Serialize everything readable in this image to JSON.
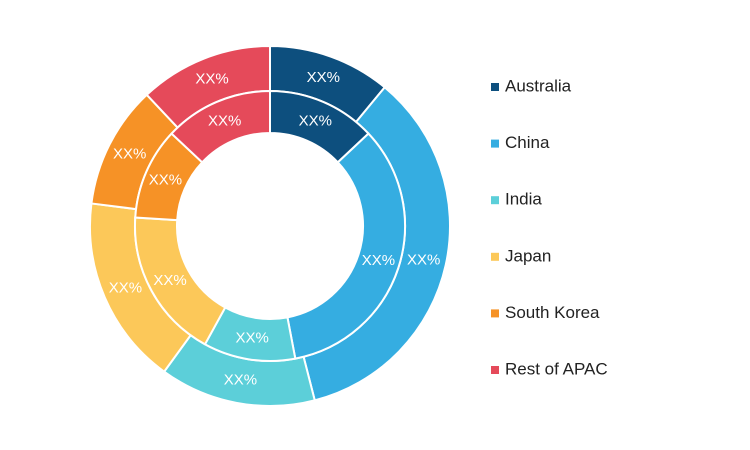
{
  "chart_data": {
    "type": "donut",
    "categories": [
      "Australia",
      "China",
      "India",
      "Japan",
      "South Korea",
      "Rest of APAC"
    ],
    "colors": [
      "#0d4f7e",
      "#35ade1",
      "#5ccfd9",
      "#fcc859",
      "#f69226",
      "#e54a5a"
    ],
    "series": [
      {
        "values": [
          11,
          35,
          14,
          17,
          11,
          12
        ],
        "value_labels": [
          "XX%",
          "XX%",
          "XX%",
          "XX%",
          "XX%",
          "XX%"
        ]
      },
      {
        "values": [
          13,
          34,
          11,
          18,
          11,
          13
        ],
        "value_labels": [
          "XX%",
          "XX%",
          "XX%",
          "XX%",
          "XX%",
          "XX%"
        ]
      }
    ]
  }
}
